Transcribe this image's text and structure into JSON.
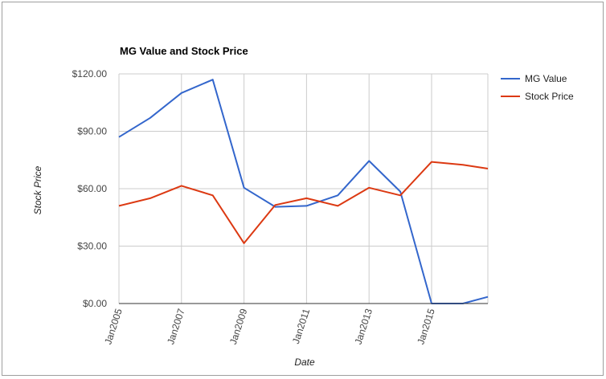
{
  "chart_data": {
    "type": "line",
    "title": "MG Value and Stock Price",
    "xlabel": "Date",
    "ylabel": "Stock Price",
    "x": [
      2005,
      2006,
      2007,
      2008,
      2009,
      2010,
      2011,
      2012,
      2013,
      2014,
      2015,
      2016,
      2016.8
    ],
    "xlim": [
      2005,
      2016.8
    ],
    "x_tick_values": [
      2005,
      2007,
      2009,
      2011,
      2013,
      2015
    ],
    "x_tick_labels": [
      "Jan2005",
      "Jan2007",
      "Jan2009",
      "Jan2011",
      "Jan2013",
      "Jan2015"
    ],
    "ylim": [
      0,
      120
    ],
    "y_tick_values": [
      0,
      30,
      60,
      90,
      120
    ],
    "y_tick_labels": [
      "$0.00",
      "$30.00",
      "$60.00",
      "$90.00",
      "$120.00"
    ],
    "grid": true,
    "legend_position": "right",
    "series": [
      {
        "name": "MG Value",
        "color": "#3366cc",
        "values": [
          87,
          97,
          110,
          117,
          60.5,
          50.5,
          51,
          56.5,
          74.5,
          58.5,
          0,
          0,
          3.5
        ]
      },
      {
        "name": "Stock Price",
        "color": "#dc3912",
        "values": [
          51,
          55,
          61.5,
          56.5,
          31.5,
          51.5,
          55,
          51,
          60.5,
          56.5,
          74,
          72.5,
          70.5
        ]
      }
    ]
  }
}
